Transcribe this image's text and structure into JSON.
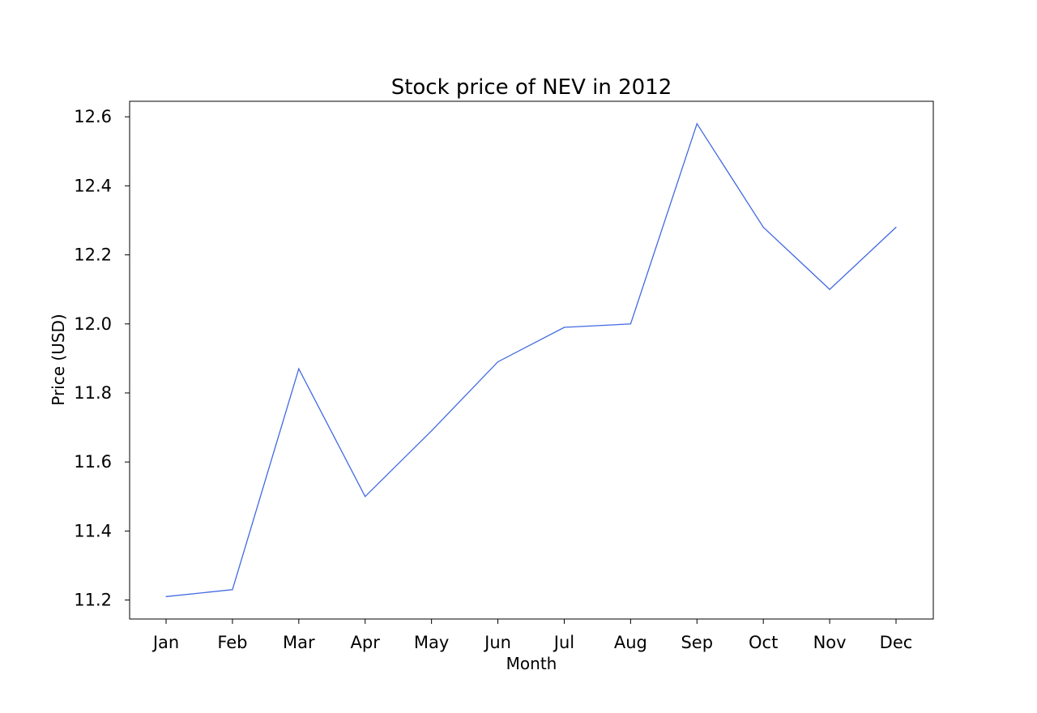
{
  "chart_data": {
    "type": "line",
    "title": "Stock price of NEV in 2012",
    "xlabel": "Month",
    "ylabel": "Price (USD)",
    "categories": [
      "Jan",
      "Feb",
      "Mar",
      "Apr",
      "May",
      "Jun",
      "Jul",
      "Aug",
      "Sep",
      "Oct",
      "Nov",
      "Dec"
    ],
    "series": [
      {
        "values": [
          11.21,
          11.23,
          11.87,
          11.5,
          11.69,
          11.89,
          11.99,
          12.0,
          12.58,
          12.28,
          12.1,
          12.28
        ],
        "color": "#4169e1"
      }
    ],
    "yticks": [
      11.2,
      11.4,
      11.6,
      11.8,
      12.0,
      12.2,
      12.4,
      12.6
    ],
    "ytick_labels": [
      "11.2",
      "11.4",
      "11.6",
      "11.8",
      "12.0",
      "12.2",
      "12.4",
      "12.6"
    ],
    "ylim": [
      11.145,
      12.645
    ],
    "grid": false,
    "legend": false
  }
}
